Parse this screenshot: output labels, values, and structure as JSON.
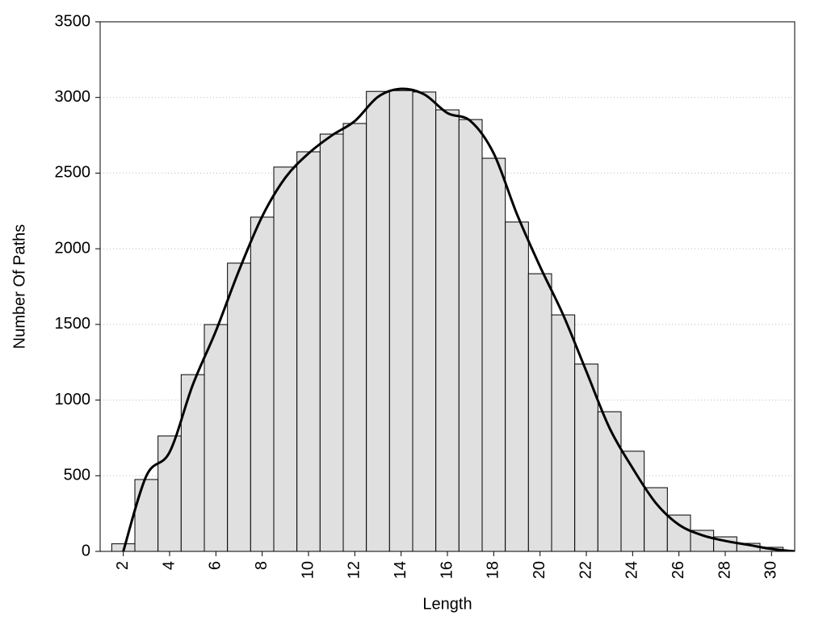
{
  "chart_data": {
    "type": "bar",
    "x_label": "Length",
    "y_label": "Number Of Paths",
    "x": [
      2,
      3,
      4,
      5,
      6,
      7,
      8,
      9,
      10,
      11,
      12,
      13,
      14,
      15,
      16,
      17,
      18,
      19,
      20,
      21,
      22,
      23,
      24,
      25,
      26,
      27,
      28,
      29,
      30
    ],
    "values": [
      50,
      475,
      763,
      1168,
      1499,
      1905,
      2209,
      2540,
      2641,
      2758,
      2828,
      3040,
      3045,
      3036,
      2918,
      2854,
      2598,
      2177,
      1835,
      1563,
      1238,
      923,
      662,
      421,
      240,
      139,
      96,
      53,
      27
    ],
    "color": "#e0e0e0",
    "curve": {
      "type": "line",
      "color": "#000000",
      "x": [
        2,
        3,
        4,
        5,
        6,
        7,
        8,
        9,
        10,
        11,
        12,
        13,
        14,
        15,
        16,
        17,
        18,
        19,
        20,
        21,
        22,
        23,
        24,
        25,
        26,
        27,
        28,
        29,
        30,
        31
      ],
      "values": [
        0,
        500,
        656,
        1100,
        1457,
        1857,
        2214,
        2470,
        2630,
        2748,
        2844,
        3004,
        3057,
        3020,
        2897,
        2844,
        2630,
        2230,
        1883,
        1563,
        1190,
        816,
        550,
        320,
        176,
        107,
        69,
        43,
        16,
        0
      ]
    },
    "xlim": [
      1,
      31
    ],
    "ylim": [
      0,
      3500
    ],
    "xticks": [
      2,
      4,
      6,
      8,
      10,
      12,
      14,
      16,
      18,
      20,
      22,
      24,
      26,
      28,
      30
    ],
    "yticks": [
      0,
      500,
      1000,
      1500,
      2000,
      2500,
      3000,
      3500
    ],
    "grid": true
  }
}
